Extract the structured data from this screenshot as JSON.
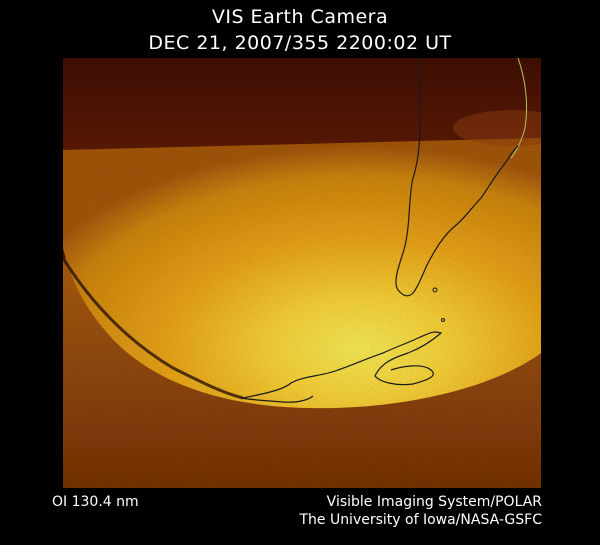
{
  "header": {
    "title": "VIS Earth Camera",
    "timestamp": "DEC 21, 2007/355 2200:02 UT"
  },
  "image": {
    "description_name": "earth-auroral-image",
    "palette": {
      "background": "#4a1204",
      "limb_dark": "#6b2a06",
      "disk_mid": "#c8780a",
      "disk_bright": "#ffcf2a",
      "disk_hot": "#fff35a",
      "coastline": "#1a1a1a",
      "grid": "#b8c060"
    }
  },
  "footer": {
    "wavelength": "OI  130.4 nm",
    "credit_line1": "Visible Imaging System/POLAR",
    "credit_line2": "The University of Iowa/NASA-GSFC"
  }
}
